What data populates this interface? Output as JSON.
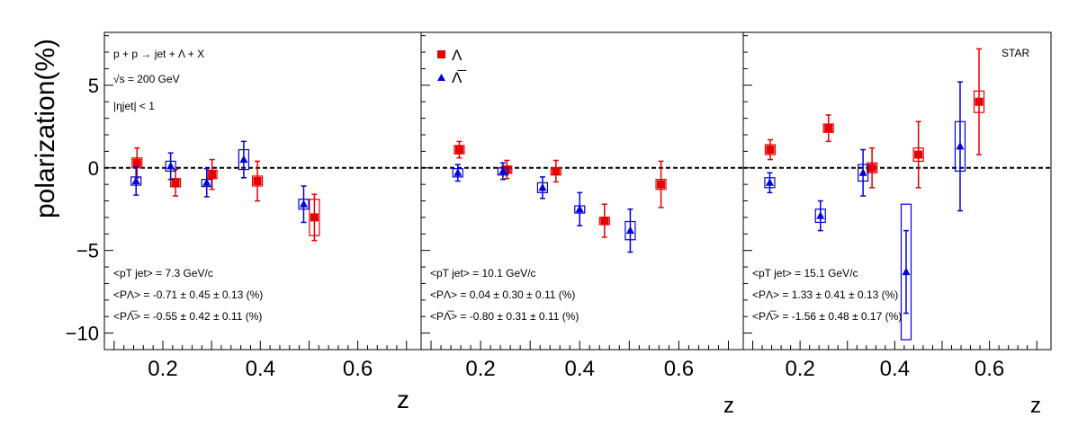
{
  "figure": {
    "ylabel": "polarization(%)",
    "xlabel": "z",
    "reaction": "p + p → jet + Λ + X",
    "energy": "√s = 200 GeV",
    "eta_cut": "|ηjet| < 1",
    "experiment": "STAR",
    "legend": [
      {
        "name": "Λ",
        "color": "#e60000",
        "marker": "square"
      },
      {
        "name": "Λ̅",
        "color": "#0000dd",
        "marker": "triangle"
      }
    ]
  },
  "chart_data": [
    {
      "type": "scatter",
      "panel": 1,
      "xlim": [
        0.08,
        0.73
      ],
      "ylim": [
        -11,
        8.2
      ],
      "xticks": [
        "0.2",
        "0.4",
        "0.6"
      ],
      "yticks": [
        "5",
        "0",
        "−5",
        "−10"
      ],
      "pt_text": "<pT jet> = 7.3 GeV/c",
      "plambda_text": "<PΛ> = -0.71 ± 0.45 ± 0.13 (%)",
      "pantilambda_text": "<PΛ̅> = -0.55 ± 0.42 ± 0.11 (%)",
      "series": [
        {
          "name": "Λ",
          "color": "#e60000",
          "marker": "square",
          "points": [
            {
              "x": 0.147,
              "y": 0.3,
              "stat": 0.9,
              "sys": 0.3
            },
            {
              "x": 0.226,
              "y": -0.9,
              "stat": 0.8,
              "sys": 0.25
            },
            {
              "x": 0.301,
              "y": -0.4,
              "stat": 0.9,
              "sys": 0.25
            },
            {
              "x": 0.394,
              "y": -0.8,
              "stat": 1.2,
              "sys": 0.3
            },
            {
              "x": 0.511,
              "y": -3.0,
              "stat": 1.4,
              "sys": 1.1
            }
          ]
        },
        {
          "name": "Λ̅",
          "color": "#0000dd",
          "marker": "triangle",
          "points": [
            {
              "x": 0.145,
              "y": -0.8,
              "stat": 0.85,
              "sys": 0.25
            },
            {
              "x": 0.216,
              "y": 0.1,
              "stat": 0.8,
              "sys": 0.3
            },
            {
              "x": 0.29,
              "y": -0.9,
              "stat": 0.85,
              "sys": 0.2
            },
            {
              "x": 0.366,
              "y": 0.5,
              "stat": 1.1,
              "sys": 0.6
            },
            {
              "x": 0.489,
              "y": -2.2,
              "stat": 1.1,
              "sys": 0.3
            }
          ]
        }
      ]
    },
    {
      "type": "scatter",
      "panel": 2,
      "xlim": [
        0.08,
        0.73
      ],
      "ylim": [
        -11,
        8.2
      ],
      "xticks": [
        "0.2",
        "0.4",
        "0.6"
      ],
      "yticks": [],
      "pt_text": "<pT jet> = 10.1 GeV/c",
      "plambda_text": "<PΛ> = 0.04 ± 0.30 ± 0.11 (%)",
      "pantilambda_text": "<PΛ̅> = -0.80 ± 0.31 ± 0.11 (%)",
      "series": [
        {
          "name": "Λ",
          "color": "#e60000",
          "marker": "square",
          "points": [
            {
              "x": 0.157,
              "y": 1.1,
              "stat": 0.5,
              "sys": 0.25
            },
            {
              "x": 0.253,
              "y": -0.1,
              "stat": 0.55,
              "sys": 0.2
            },
            {
              "x": 0.352,
              "y": -0.2,
              "stat": 0.65,
              "sys": 0.2
            },
            {
              "x": 0.45,
              "y": -3.2,
              "stat": 1.0,
              "sys": 0.2
            },
            {
              "x": 0.564,
              "y": -1.0,
              "stat": 1.4,
              "sys": 0.3
            }
          ]
        },
        {
          "name": "Λ̅",
          "color": "#0000dd",
          "marker": "triangle",
          "points": [
            {
              "x": 0.154,
              "y": -0.3,
              "stat": 0.5,
              "sys": 0.25
            },
            {
              "x": 0.245,
              "y": -0.2,
              "stat": 0.5,
              "sys": 0.2
            },
            {
              "x": 0.325,
              "y": -1.2,
              "stat": 0.65,
              "sys": 0.3
            },
            {
              "x": 0.4,
              "y": -2.5,
              "stat": 1.0,
              "sys": 0.2
            },
            {
              "x": 0.502,
              "y": -3.8,
              "stat": 1.3,
              "sys": 0.55
            }
          ]
        }
      ]
    },
    {
      "type": "scatter",
      "panel": 3,
      "xlim": [
        0.08,
        0.73
      ],
      "ylim": [
        -11,
        8.2
      ],
      "xticks": [
        "0.2",
        "0.4",
        "0.6"
      ],
      "yticks": [],
      "pt_text": "<pT jet> = 15.1 GeV/c",
      "plambda_text": "<PΛ> = 1.33 ± 0.41 ± 0.13 (%)",
      "pantilambda_text": "<PΛ̅> = -1.56 ± 0.48 ± 0.17 (%)",
      "series": [
        {
          "name": "Λ",
          "color": "#e60000",
          "marker": "square",
          "points": [
            {
              "x": 0.137,
              "y": 1.1,
              "stat": 0.6,
              "sys": 0.3
            },
            {
              "x": 0.26,
              "y": 2.4,
              "stat": 0.8,
              "sys": 0.25
            },
            {
              "x": 0.352,
              "y": 0.0,
              "stat": 1.2,
              "sys": 0.3
            },
            {
              "x": 0.45,
              "y": 0.8,
              "stat": 2.0,
              "sys": 0.4
            },
            {
              "x": 0.578,
              "y": 4.0,
              "stat": 3.2,
              "sys": 0.65
            }
          ]
        },
        {
          "name": "Λ̅",
          "color": "#0000dd",
          "marker": "triangle",
          "points": [
            {
              "x": 0.136,
              "y": -0.9,
              "stat": 0.6,
              "sys": 0.3
            },
            {
              "x": 0.243,
              "y": -2.9,
              "stat": 0.9,
              "sys": 0.4
            },
            {
              "x": 0.333,
              "y": -0.3,
              "stat": 1.4,
              "sys": 0.5
            },
            {
              "x": 0.424,
              "y": -6.3,
              "stat": 2.5,
              "sys": 4.1
            },
            {
              "x": 0.538,
              "y": 1.3,
              "stat": 3.9,
              "sys": 1.5
            }
          ]
        }
      ]
    }
  ]
}
